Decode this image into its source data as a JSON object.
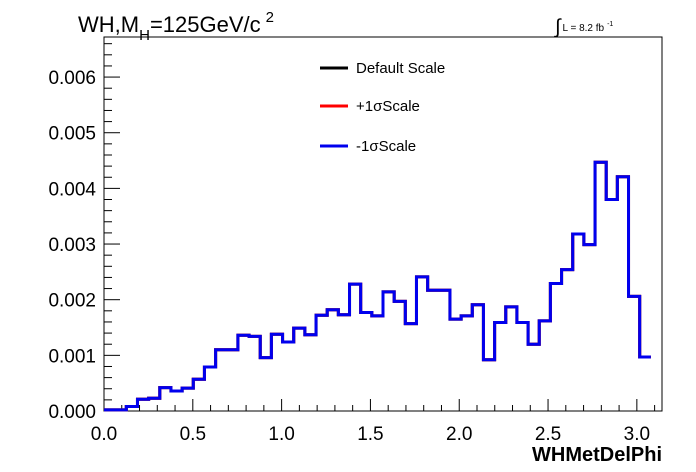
{
  "chart_data": {
    "type": "histogram",
    "title_main": "WH,M",
    "title_sub": "H",
    "title_rest": "=125GeV/c",
    "title_sup": "2",
    "luminosity": {
      "integral": "∫",
      "text": "L = 8.2 fb",
      "sup": "-1"
    },
    "xlabel": "WHMetDelPhi",
    "ylabel": "",
    "xlim": [
      0.0,
      3.14159
    ],
    "ylim": [
      0.0,
      0.00672
    ],
    "xticks": [
      0.0,
      0.5,
      1.0,
      1.5,
      2.0,
      2.5,
      3.0
    ],
    "xtick_labels": [
      "0.0",
      "0.5",
      "1.0",
      "1.5",
      "2.0",
      "2.5",
      "3.0"
    ],
    "yticks": [
      0.0,
      0.001,
      0.002,
      0.003,
      0.004,
      0.005,
      0.006
    ],
    "ytick_labels": [
      "0.000",
      "0.001",
      "0.002",
      "0.003",
      "0.004",
      "0.005",
      "0.006"
    ],
    "grid": false,
    "legend_position": "top-center",
    "bin_width": 0.0628318,
    "series": [
      {
        "name": "Default Scale",
        "color": "#000000",
        "values": [
          2e-05,
          2e-05,
          8e-05,
          0.00021,
          0.00023,
          0.00042,
          0.00036,
          0.00041,
          0.00057,
          0.00079,
          0.0011,
          0.0011,
          0.00136,
          0.00134,
          0.00096,
          0.00138,
          0.00124,
          0.00149,
          0.00137,
          0.00172,
          0.00182,
          0.00173,
          0.00228,
          0.00177,
          0.00171,
          0.00214,
          0.00197,
          0.00157,
          0.00241,
          0.00217,
          0.00217,
          0.00165,
          0.00171,
          0.00191,
          0.00092,
          0.00159,
          0.00187,
          0.00159,
          0.0012,
          0.00162,
          0.00229,
          0.00254,
          0.00318,
          0.00299,
          0.00447,
          0.0038,
          0.00421,
          0.00206,
          0.00097
        ]
      },
      {
        "name": "+1σScale",
        "color": "#ff0000",
        "values": [
          2e-05,
          2e-05,
          8e-05,
          0.00021,
          0.00023,
          0.00042,
          0.00036,
          0.00041,
          0.00057,
          0.00079,
          0.0011,
          0.0011,
          0.00136,
          0.00134,
          0.00096,
          0.00138,
          0.00124,
          0.00149,
          0.00137,
          0.00172,
          0.00182,
          0.00173,
          0.00228,
          0.00177,
          0.00171,
          0.00214,
          0.00197,
          0.00157,
          0.00241,
          0.00217,
          0.00217,
          0.00165,
          0.00171,
          0.00191,
          0.00092,
          0.00159,
          0.00187,
          0.00159,
          0.0012,
          0.00162,
          0.00229,
          0.00254,
          0.00318,
          0.00299,
          0.00447,
          0.0038,
          0.00421,
          0.00206,
          0.00097
        ]
      },
      {
        "name": "-1σScale",
        "color": "#0000ee",
        "values": [
          2e-05,
          2e-05,
          8e-05,
          0.00021,
          0.00023,
          0.00042,
          0.00036,
          0.00041,
          0.00057,
          0.00079,
          0.0011,
          0.0011,
          0.00136,
          0.00134,
          0.00096,
          0.00138,
          0.00124,
          0.00149,
          0.00137,
          0.00172,
          0.00182,
          0.00173,
          0.00228,
          0.00177,
          0.00171,
          0.00214,
          0.00197,
          0.00157,
          0.00241,
          0.00217,
          0.00217,
          0.00165,
          0.00171,
          0.00191,
          0.00092,
          0.00159,
          0.00187,
          0.00159,
          0.0012,
          0.00162,
          0.00229,
          0.00254,
          0.00318,
          0.00299,
          0.00447,
          0.0038,
          0.00421,
          0.00206,
          0.00097
        ]
      }
    ]
  }
}
